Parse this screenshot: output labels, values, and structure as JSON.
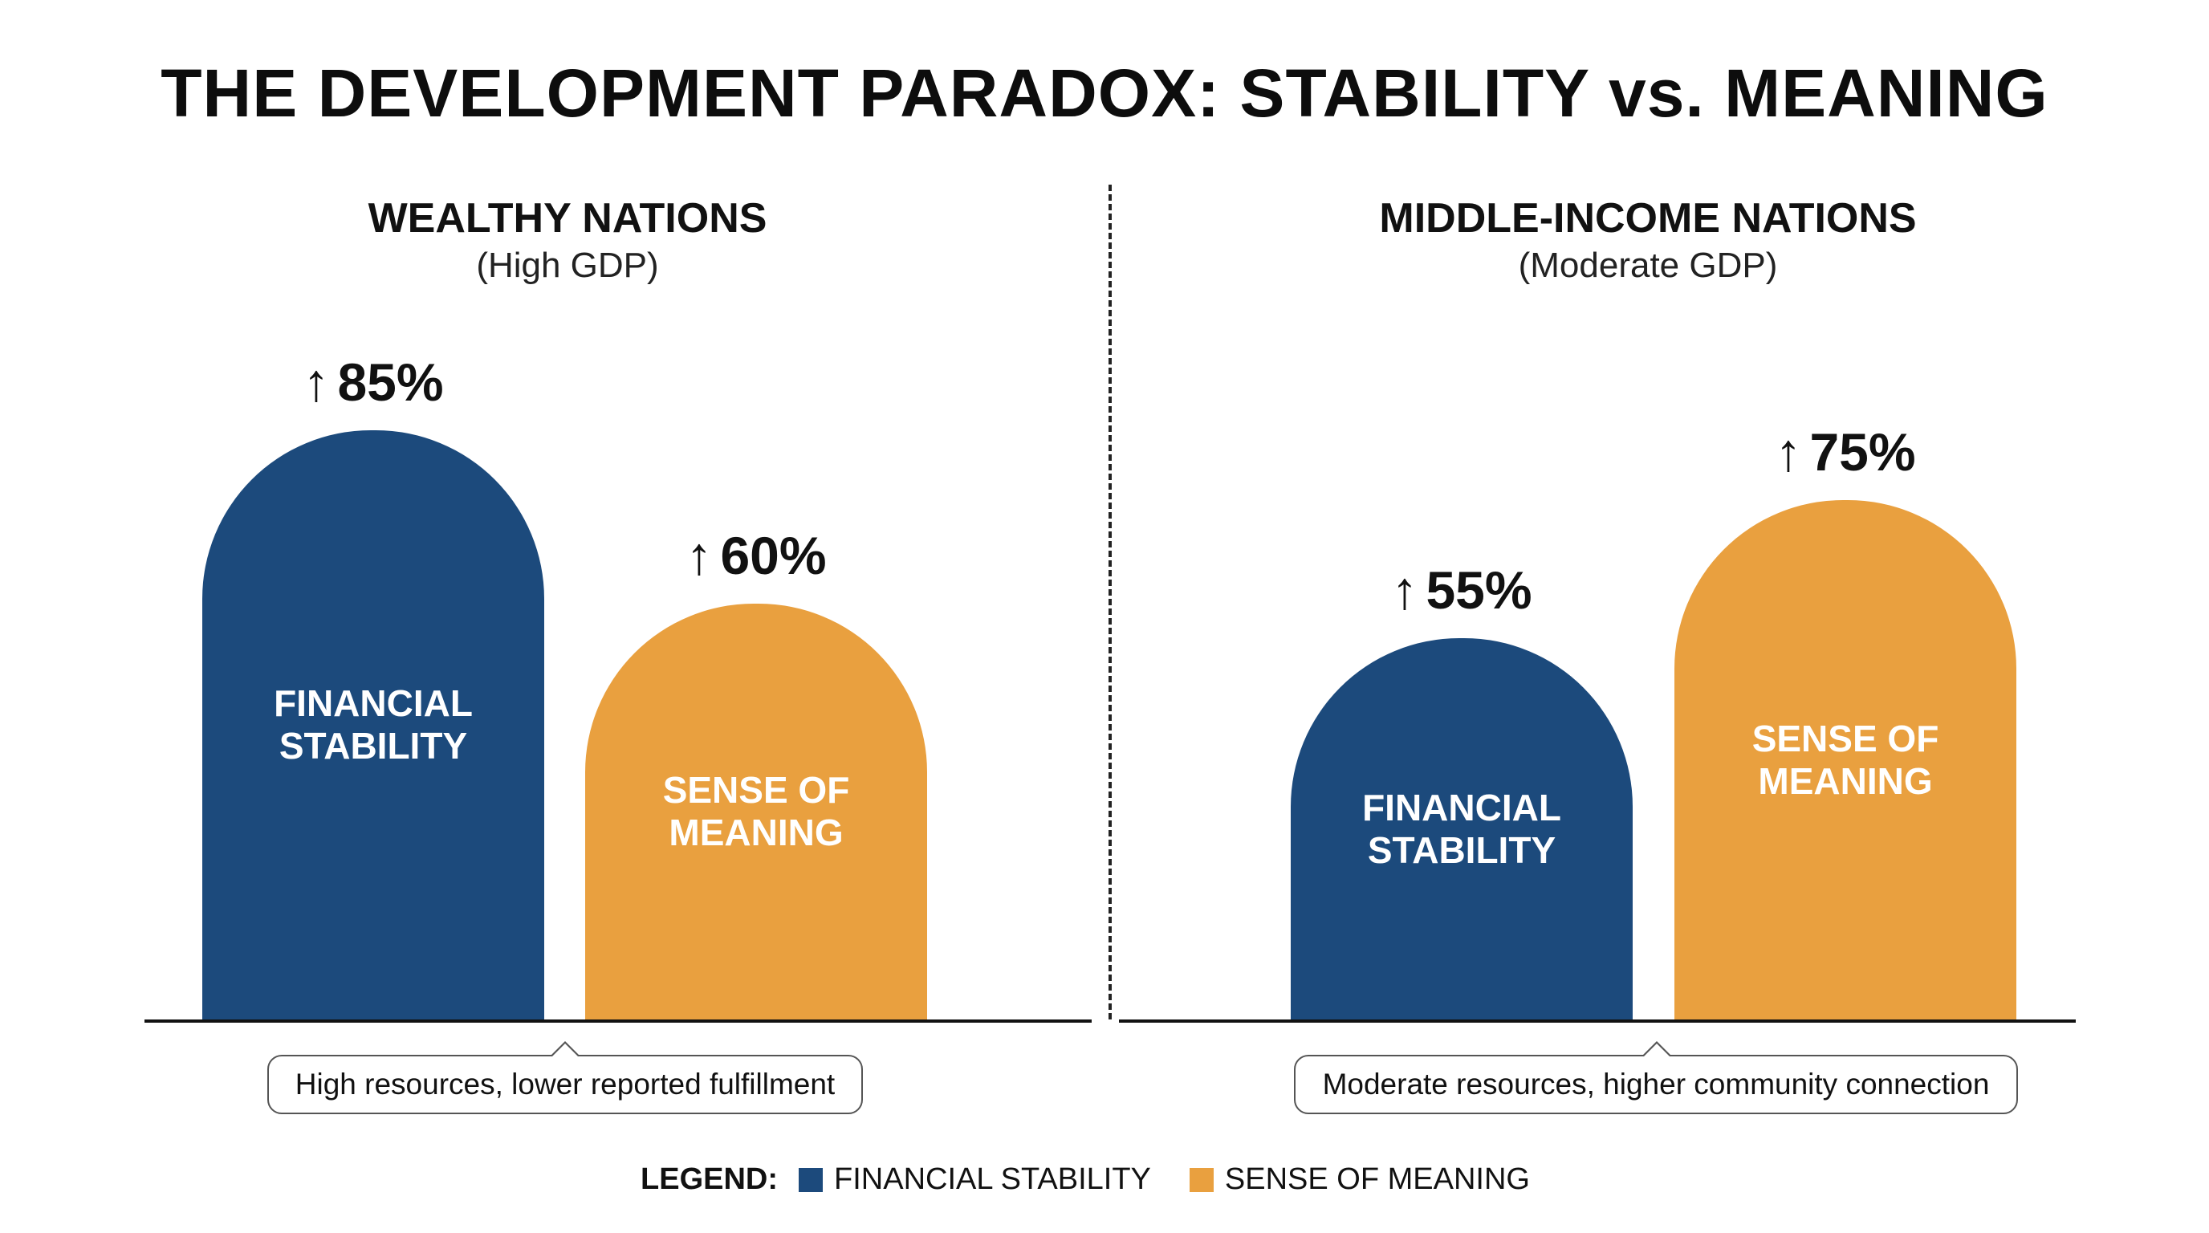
{
  "chart_data": {
    "type": "bar",
    "title": "THE DEVELOPMENT PARADOX: STABILITY vs. MEANING",
    "colors": {
      "financial_stability": "#1c4a7c",
      "sense_of_meaning": "#e9a03f"
    },
    "panels": [
      {
        "title": "WEALTHY NATIONS",
        "subtitle": "(High GDP)",
        "note": "High resources, lower reported fulfillment",
        "bars": [
          {
            "series": "financial_stability",
            "label": "FINANCIAL\nSTABILITY",
            "value": 85,
            "value_label": "85%",
            "arrow": "↑"
          },
          {
            "series": "sense_of_meaning",
            "label": "SENSE OF\nMEANING",
            "value": 60,
            "value_label": "60%",
            "arrow": "↑"
          }
        ]
      },
      {
        "title": "MIDDLE-INCOME NATIONS",
        "subtitle": "(Moderate GDP)",
        "note": "Moderate resources, higher community connection",
        "bars": [
          {
            "series": "financial_stability",
            "label": "FINANCIAL\nSTABILITY",
            "value": 55,
            "value_label": "55%",
            "arrow": "↑"
          },
          {
            "series": "sense_of_meaning",
            "label": "SENSE OF\nMEANING",
            "value": 75,
            "value_label": "75%",
            "arrow": "↑"
          }
        ]
      }
    ],
    "legend": {
      "title": "LEGEND:",
      "placement": "bottom-center",
      "items": [
        {
          "series": "financial_stability",
          "label": "FINANCIAL STABILITY"
        },
        {
          "series": "sense_of_meaning",
          "label": "SENSE OF MEANING"
        }
      ]
    },
    "grid": false
  }
}
